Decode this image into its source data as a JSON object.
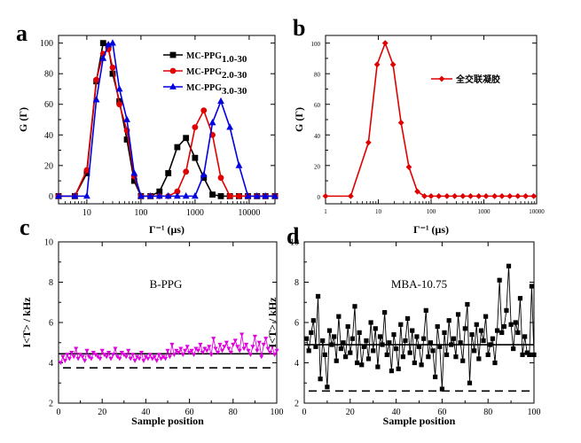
{
  "chart_data": [
    {
      "panel": "a",
      "type": "line",
      "xscale": "log",
      "xlim": [
        3,
        30000
      ],
      "ylim": [
        -5,
        105
      ],
      "xticks": [
        10,
        100,
        1000,
        10000
      ],
      "xtick_labels": [
        "10",
        "100",
        "1000",
        "10000"
      ],
      "yticks": [
        0,
        20,
        40,
        60,
        80,
        100
      ],
      "xlabel": "Γ⁻¹ (μs)",
      "ylabel": "G (Γ)",
      "legend_position": "top-right",
      "series": [
        {
          "name": "MC-PPG1.0-30",
          "color": "#000000",
          "marker": "square",
          "x": [
            3,
            6,
            10,
            15,
            20,
            25,
            30,
            40,
            55,
            75,
            100,
            150,
            220,
            320,
            470,
            680,
            1000,
            1450,
            2100,
            3000,
            4400,
            6500,
            9500,
            14000,
            20000,
            30000
          ],
          "y": [
            0,
            0,
            15,
            75,
            100,
            98,
            80,
            62,
            37,
            10,
            0,
            0,
            3,
            15,
            32,
            38,
            25,
            12,
            1,
            0,
            0,
            0,
            0,
            0,
            0,
            0
          ]
        },
        {
          "name": "MC-PPG2.0-30",
          "color": "#e00000",
          "marker": "circle",
          "x": [
            3,
            6,
            10,
            15,
            20,
            25,
            30,
            40,
            55,
            75,
            100,
            150,
            220,
            320,
            470,
            680,
            1000,
            1450,
            2100,
            3000,
            4400,
            6500,
            9500,
            14000,
            20000,
            30000
          ],
          "y": [
            0,
            0,
            17,
            76,
            93,
            96,
            84,
            60,
            43,
            13,
            0,
            0,
            0,
            0,
            3,
            16,
            45,
            56,
            40,
            12,
            0,
            0,
            0,
            0,
            0,
            0
          ]
        },
        {
          "name": "MC-PPG3.0-30",
          "color": "#0000e0",
          "marker": "triangle",
          "x": [
            3,
            6,
            10,
            15,
            20,
            25,
            30,
            40,
            55,
            75,
            100,
            150,
            220,
            320,
            470,
            680,
            1000,
            1450,
            2100,
            3000,
            4400,
            6500,
            9500,
            14000,
            20000,
            30000
          ],
          "y": [
            0,
            0,
            0,
            63,
            90,
            99,
            100,
            70,
            50,
            15,
            0,
            0,
            0,
            0,
            0,
            0,
            0,
            14,
            48,
            62,
            45,
            20,
            0,
            0,
            0,
            0
          ]
        }
      ]
    },
    {
      "panel": "b",
      "type": "line",
      "xscale": "log",
      "xlim": [
        1,
        10000
      ],
      "ylim": [
        -5,
        105
      ],
      "xticks": [
        1,
        10,
        100,
        1000,
        10000
      ],
      "xtick_labels": [
        "1",
        "10",
        "100",
        "1000",
        "10000"
      ],
      "yticks": [
        0,
        20,
        40,
        60,
        80,
        100
      ],
      "xlabel": "Γ⁻¹ (μs)",
      "ylabel": "G (Γ)",
      "legend_position": "top-right",
      "series": [
        {
          "name": "全交联凝胶",
          "color": "#e00000",
          "marker": "diamond",
          "x": [
            1,
            3,
            6.5,
            9.5,
            13.5,
            19,
            27,
            38,
            55,
            75,
            100,
            140,
            200,
            280,
            400,
            560,
            800,
            1100,
            1600,
            2200,
            3100,
            4400,
            6200,
            8800
          ],
          "y": [
            0,
            0,
            35,
            86,
            100,
            86,
            48,
            19,
            3,
            0,
            0,
            0,
            0,
            0,
            0,
            0,
            0,
            0,
            0,
            0,
            0,
            0,
            0,
            0
          ]
        }
      ]
    },
    {
      "panel": "c",
      "type": "scatter",
      "xlim": [
        0,
        100
      ],
      "ylim": [
        2,
        10
      ],
      "xticks": [
        0,
        20,
        40,
        60,
        80,
        100
      ],
      "yticks": [
        2,
        4,
        6,
        8,
        10
      ],
      "xlabel": "Sample position",
      "ylabel": "I<T> / kHz",
      "annotation": "B-PPG",
      "mean_line": 4.45,
      "baseline_line": 3.75,
      "series": [
        {
          "name": "",
          "color": "#e000e0",
          "marker": "triangle-down",
          "x": [
            1,
            2,
            3,
            4,
            5,
            6,
            7,
            8,
            9,
            10,
            11,
            12,
            13,
            14,
            15,
            16,
            17,
            18,
            19,
            20,
            21,
            22,
            23,
            24,
            25,
            26,
            27,
            28,
            29,
            30,
            31,
            32,
            33,
            34,
            35,
            36,
            37,
            38,
            39,
            40,
            41,
            42,
            43,
            44,
            45,
            46,
            47,
            48,
            49,
            50,
            51,
            52,
            53,
            54,
            55,
            56,
            57,
            58,
            59,
            60,
            61,
            62,
            63,
            64,
            65,
            66,
            67,
            68,
            69,
            70,
            71,
            72,
            73,
            74,
            75,
            76,
            77,
            78,
            79,
            80,
            81,
            82,
            83,
            84,
            85,
            86,
            87,
            88,
            89,
            90,
            91,
            92,
            93,
            94,
            95,
            96,
            97,
            98,
            99,
            100
          ],
          "y": [
            4.0,
            4.3,
            4.1,
            4.4,
            4.2,
            4.5,
            4.3,
            4.7,
            4.2,
            4.4,
            4.3,
            4.1,
            4.6,
            4.3,
            4.2,
            4.5,
            4.4,
            4.3,
            4.2,
            4.6,
            4.4,
            4.3,
            4.5,
            4.2,
            4.4,
            4.7,
            4.3,
            4.2,
            4.5,
            4.4,
            4.3,
            4.6,
            4.2,
            4.4,
            4.1,
            4.3,
            4.2,
            4.5,
            4.1,
            4.3,
            4.2,
            4.4,
            4.2,
            4.3,
            4.1,
            4.4,
            4.2,
            4.3,
            4.2,
            4.6,
            4.3,
            4.9,
            4.4,
            4.6,
            4.5,
            4.7,
            4.4,
            4.6,
            4.8,
            4.5,
            4.6,
            4.4,
            4.7,
            4.6,
            4.9,
            4.5,
            4.7,
            4.6,
            4.8,
            4.4,
            5.2,
            4.7,
            4.5,
            4.9,
            4.6,
            4.8,
            5.0,
            4.7,
            4.5,
            4.9,
            5.1,
            4.8,
            4.6,
            5.4,
            4.7,
            4.9,
            4.6,
            4.4,
            4.8,
            5.3,
            4.6,
            5.0,
            4.3,
            4.9,
            5.2,
            4.7,
            4.5,
            4.8,
            4.4,
            4.6
          ]
        }
      ]
    },
    {
      "panel": "d",
      "type": "line",
      "xlim": [
        0,
        100
      ],
      "ylim": [
        2,
        10
      ],
      "xticks": [
        0,
        20,
        40,
        60,
        80,
        100
      ],
      "yticks": [
        2,
        4,
        6,
        8,
        10
      ],
      "xlabel": "Sample position",
      "ylabel": "I<T> / kHz",
      "annotation": "MBA-10.75",
      "mean_line": 4.9,
      "baseline_line": 2.6,
      "series": [
        {
          "name": "",
          "color": "#000000",
          "marker": "square",
          "x": [
            1,
            2,
            3,
            4,
            5,
            6,
            7,
            8,
            9,
            10,
            11,
            12,
            13,
            14,
            15,
            16,
            17,
            18,
            19,
            20,
            21,
            22,
            23,
            24,
            25,
            26,
            27,
            28,
            29,
            30,
            31,
            32,
            33,
            34,
            35,
            36,
            37,
            38,
            39,
            40,
            41,
            42,
            43,
            44,
            45,
            46,
            47,
            48,
            49,
            50,
            51,
            52,
            53,
            54,
            55,
            56,
            57,
            58,
            59,
            60,
            61,
            62,
            63,
            64,
            65,
            66,
            67,
            68,
            69,
            70,
            71,
            72,
            73,
            74,
            75,
            76,
            77,
            78,
            79,
            80,
            81,
            82,
            83,
            84,
            85,
            86,
            87,
            88,
            89,
            90,
            91,
            92,
            93,
            94,
            95,
            96,
            97,
            98,
            99,
            100
          ],
          "y": [
            5.2,
            4.6,
            5.5,
            6.1,
            4.8,
            7.3,
            3.2,
            5.1,
            4.4,
            2.8,
            5.6,
            4.9,
            5.3,
            4.1,
            6.3,
            4.7,
            5.0,
            4.3,
            5.8,
            4.5,
            5.2,
            6.8,
            4.0,
            5.5,
            3.9,
            4.8,
            5.1,
            4.2,
            6.0,
            4.6,
            5.7,
            3.8,
            5.3,
            4.9,
            6.5,
            4.4,
            5.0,
            3.6,
            5.4,
            4.7,
            3.7,
            5.9,
            4.3,
            5.1,
            6.2,
            4.5,
            5.6,
            4.0,
            5.3,
            4.8,
            3.9,
            5.2,
            6.6,
            4.3,
            5.0,
            4.6,
            3.3,
            5.8,
            4.8,
            2.7,
            5.5,
            4.4,
            6.1,
            4.9,
            5.2,
            4.3,
            6.4,
            5.0,
            4.1,
            5.7,
            6.9,
            3.0,
            5.4,
            4.6,
            5.9,
            4.2,
            5.6,
            5.1,
            6.3,
            4.4,
            4.9,
            5.2,
            4.0,
            5.6,
            8.1,
            5.5,
            5.8,
            6.6,
            8.8,
            5.9,
            4.7,
            6.0,
            5.5,
            7.2,
            4.4,
            5.3,
            4.5,
            4.4,
            7.8,
            4.4
          ]
        }
      ]
    }
  ]
}
